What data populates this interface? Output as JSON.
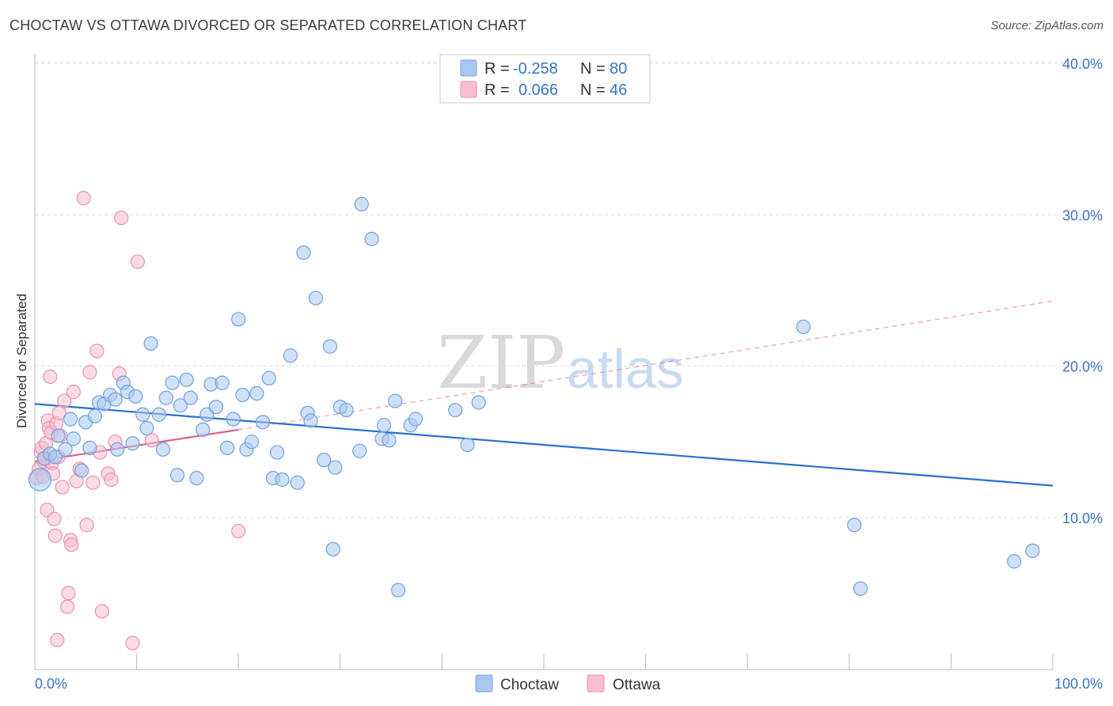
{
  "title": "CHOCTAW VS OTTAWA DIVORCED OR SEPARATED CORRELATION CHART",
  "source": "Source: ZipAtlas.com",
  "watermark": {
    "part1": "ZIP",
    "part2": "atlas"
  },
  "legend": {
    "rows": [
      {
        "r_label": "R =",
        "r_value": "-0.258",
        "n_label": "N =",
        "n_value": "80"
      },
      {
        "r_label": "R =",
        "r_value": "0.066",
        "n_label": "N =",
        "n_value": "46"
      }
    ]
  },
  "bottom_legend": [
    "Choctaw",
    "Ottawa"
  ],
  "colors": {
    "choctaw_fill": "#a9c8f0",
    "choctaw_stroke": "#6fa0e0",
    "choctaw_line": "#2a6fd0",
    "ottawa_fill": "#f7bfd0",
    "ottawa_stroke": "#ee8fae",
    "ottawa_line": "#e0608a",
    "tick_text": "#3a72c8",
    "grid": "#dddddd"
  },
  "chart_data": {
    "type": "scatter",
    "title": "CHOCTAW VS OTTAWA DIVORCED OR SEPARATED CORRELATION CHART",
    "xlabel": "",
    "ylabel": "Divorced or Separated",
    "xlim": [
      0,
      100
    ],
    "ylim": [
      0,
      42
    ],
    "x_tick_labels": [
      "0.0%",
      "100.0%"
    ],
    "y_ticks": [
      10,
      20,
      30,
      40
    ],
    "y_tick_labels": [
      "10.0%",
      "20.0%",
      "30.0%",
      "40.0%"
    ],
    "legend_position": "top-center",
    "series": [
      {
        "name": "Choctaw",
        "r": -0.258,
        "n": 80,
        "trend": {
          "x": [
            0,
            100
          ],
          "y": [
            17.5,
            12.1
          ],
          "style": "solid"
        },
        "points": [
          [
            0.5,
            12.5
          ],
          [
            0.9,
            13.9
          ],
          [
            1.5,
            14.2
          ],
          [
            2.0,
            14.0
          ],
          [
            2.3,
            15.4
          ],
          [
            3.0,
            14.5
          ],
          [
            3.5,
            16.5
          ],
          [
            3.8,
            15.2
          ],
          [
            4.6,
            13.1
          ],
          [
            5.0,
            16.3
          ],
          [
            5.4,
            14.6
          ],
          [
            5.9,
            16.7
          ],
          [
            6.3,
            17.6
          ],
          [
            6.8,
            17.5
          ],
          [
            7.4,
            18.1
          ],
          [
            7.9,
            17.8
          ],
          [
            8.1,
            14.5
          ],
          [
            8.7,
            18.9
          ],
          [
            9.1,
            18.3
          ],
          [
            9.6,
            14.9
          ],
          [
            9.9,
            18.0
          ],
          [
            10.6,
            16.8
          ],
          [
            11.0,
            15.9
          ],
          [
            11.4,
            21.5
          ],
          [
            12.2,
            16.8
          ],
          [
            12.6,
            14.5
          ],
          [
            12.9,
            17.9
          ],
          [
            13.5,
            18.9
          ],
          [
            14.0,
            12.8
          ],
          [
            14.3,
            17.4
          ],
          [
            14.9,
            19.1
          ],
          [
            15.3,
            17.9
          ],
          [
            15.9,
            12.6
          ],
          [
            16.5,
            15.8
          ],
          [
            16.9,
            16.8
          ],
          [
            17.3,
            18.8
          ],
          [
            17.8,
            17.3
          ],
          [
            18.4,
            18.9
          ],
          [
            18.9,
            14.6
          ],
          [
            19.5,
            16.5
          ],
          [
            20.0,
            23.1
          ],
          [
            20.4,
            18.1
          ],
          [
            20.8,
            14.5
          ],
          [
            21.3,
            15.0
          ],
          [
            21.8,
            18.2
          ],
          [
            22.4,
            16.3
          ],
          [
            23.0,
            19.2
          ],
          [
            23.4,
            12.6
          ],
          [
            23.8,
            14.3
          ],
          [
            24.3,
            12.5
          ],
          [
            25.1,
            20.7
          ],
          [
            25.8,
            12.3
          ],
          [
            26.4,
            27.5
          ],
          [
            26.8,
            16.9
          ],
          [
            27.1,
            16.4
          ],
          [
            27.6,
            24.5
          ],
          [
            28.4,
            13.8
          ],
          [
            29.0,
            21.3
          ],
          [
            29.5,
            13.3
          ],
          [
            30.0,
            17.3
          ],
          [
            30.6,
            17.1
          ],
          [
            31.9,
            14.4
          ],
          [
            32.1,
            30.7
          ],
          [
            33.1,
            28.4
          ],
          [
            34.1,
            15.2
          ],
          [
            34.3,
            16.1
          ],
          [
            34.8,
            15.1
          ],
          [
            35.4,
            17.7
          ],
          [
            35.7,
            5.2
          ],
          [
            36.9,
            16.1
          ],
          [
            37.4,
            16.5
          ],
          [
            41.3,
            17.1
          ],
          [
            42.5,
            14.8
          ],
          [
            43.6,
            17.6
          ],
          [
            29.3,
            7.9
          ],
          [
            75.5,
            22.6
          ],
          [
            80.5,
            9.5
          ],
          [
            81.1,
            5.3
          ],
          [
            96.2,
            7.1
          ],
          [
            98.0,
            7.8
          ]
        ]
      },
      {
        "name": "Ottawa",
        "r": 0.066,
        "n": 46,
        "trend": {
          "x": [
            0,
            20
          ],
          "y": [
            13.7,
            15.8
          ],
          "style": "solid",
          "extension": {
            "x": [
              20,
              100
            ],
            "y": [
              15.8,
              24.3
            ],
            "style": "dashed"
          }
        },
        "points": [
          [
            0.2,
            12.6
          ],
          [
            0.4,
            13.2
          ],
          [
            0.6,
            14.3
          ],
          [
            0.7,
            14.6
          ],
          [
            0.8,
            12.7
          ],
          [
            0.9,
            13.7
          ],
          [
            1.0,
            13.9
          ],
          [
            1.1,
            14.9
          ],
          [
            1.2,
            10.5
          ],
          [
            1.3,
            16.4
          ],
          [
            1.4,
            15.9
          ],
          [
            1.5,
            19.3
          ],
          [
            1.6,
            15.6
          ],
          [
            1.7,
            13.6
          ],
          [
            1.8,
            12.9
          ],
          [
            1.9,
            9.9
          ],
          [
            2.0,
            8.8
          ],
          [
            2.1,
            16.2
          ],
          [
            2.2,
            1.9
          ],
          [
            2.3,
            14.0
          ],
          [
            2.4,
            16.9
          ],
          [
            2.5,
            15.4
          ],
          [
            2.7,
            12.0
          ],
          [
            2.9,
            17.7
          ],
          [
            3.2,
            4.1
          ],
          [
            3.3,
            5.0
          ],
          [
            3.5,
            8.5
          ],
          [
            3.6,
            8.2
          ],
          [
            3.8,
            18.3
          ],
          [
            4.1,
            12.4
          ],
          [
            4.4,
            13.2
          ],
          [
            4.8,
            31.1
          ],
          [
            5.1,
            9.5
          ],
          [
            5.4,
            19.6
          ],
          [
            5.7,
            12.3
          ],
          [
            6.1,
            21.0
          ],
          [
            6.4,
            14.3
          ],
          [
            6.6,
            3.8
          ],
          [
            7.2,
            12.9
          ],
          [
            7.5,
            12.5
          ],
          [
            7.9,
            15.0
          ],
          [
            8.3,
            19.5
          ],
          [
            8.5,
            29.8
          ],
          [
            9.6,
            1.7
          ],
          [
            10.1,
            26.9
          ],
          [
            11.5,
            15.1
          ]
        ],
        "extra_points": [
          [
            20.0,
            9.1
          ]
        ]
      }
    ]
  }
}
